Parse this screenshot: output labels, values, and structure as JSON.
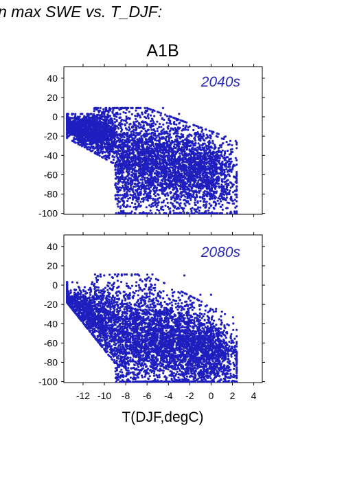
{
  "header": {
    "title": "in max SWE vs. T_DJF:"
  },
  "colors": {
    "points": "#1f1fbf",
    "period_label": "#2a2ab8",
    "axis": "#000000"
  },
  "chart_data": [
    {
      "type": "scatter",
      "title": "A1B",
      "annotation": "2040s",
      "xlabel": "",
      "ylabel": "",
      "xlim": [
        -13.8,
        4.8
      ],
      "ylim": [
        -101,
        52
      ],
      "x_ticks": [
        -12,
        -10,
        -8,
        -6,
        -4,
        -2,
        0,
        2,
        4
      ],
      "y_ticks": [
        -100,
        -80,
        -60,
        -40,
        -20,
        0,
        20,
        40
      ],
      "y_tick_labels": [
        "-100",
        "-80",
        "-60",
        "-40",
        "-20",
        "0",
        "20",
        "40"
      ],
      "grid": false,
      "point_color": "#1f1fbf",
      "cloud": {
        "n_points": 5500,
        "x_range": [
          -13.5,
          2.4
        ],
        "y_max": 9,
        "y_min": -100,
        "center_x": -5.2,
        "center_y": -45
      },
      "samples": [
        {
          "x": -13.4,
          "y": 0
        },
        {
          "x": -12.5,
          "y": -2
        },
        {
          "x": -11,
          "y": -5
        },
        {
          "x": -10,
          "y": 3
        },
        {
          "x": -8,
          "y": 4
        },
        {
          "x": -6,
          "y": 6
        },
        {
          "x": -4.5,
          "y": 9
        },
        {
          "x": -3,
          "y": 3
        },
        {
          "x": -2,
          "y": -10
        },
        {
          "x": 0.5,
          "y": -20
        },
        {
          "x": 1.8,
          "y": -25
        },
        {
          "x": 2.3,
          "y": -25
        },
        {
          "x": -8,
          "y": -30
        },
        {
          "x": -6,
          "y": -45
        },
        {
          "x": -4,
          "y": -60
        },
        {
          "x": -2,
          "y": -80
        },
        {
          "x": 1.5,
          "y": -100
        },
        {
          "x": 2.2,
          "y": -98
        }
      ]
    },
    {
      "type": "scatter",
      "title": "",
      "annotation": "2080s",
      "xlabel": "T(DJF,degC)",
      "ylabel": "",
      "xlim": [
        -13.8,
        4.8
      ],
      "ylim": [
        -101,
        52
      ],
      "x_ticks": [
        -12,
        -10,
        -8,
        -6,
        -4,
        -2,
        0,
        2,
        4
      ],
      "x_tick_labels": [
        "-12",
        "-10",
        "-8",
        "-6",
        "-4",
        "-2",
        "0",
        "2",
        "4"
      ],
      "y_ticks": [
        -100,
        -80,
        -60,
        -40,
        -20,
        0,
        20,
        40
      ],
      "y_tick_labels": [
        "-100",
        "-80",
        "-60",
        "-40",
        "-20",
        "0",
        "20",
        "40"
      ],
      "grid": false,
      "point_color": "#1f1fbf",
      "cloud": {
        "n_points": 5500,
        "x_range": [
          -13.5,
          2.4
        ],
        "y_max": 11,
        "y_min": -100,
        "center_x": -4.5,
        "center_y": -65
      },
      "samples": [
        {
          "x": -13.5,
          "y": -3
        },
        {
          "x": -13,
          "y": 3
        },
        {
          "x": -11,
          "y": 0
        },
        {
          "x": -9.5,
          "y": 2
        },
        {
          "x": -7,
          "y": 3
        },
        {
          "x": -5.5,
          "y": 11
        },
        {
          "x": -2.5,
          "y": 10
        },
        {
          "x": -1,
          "y": -10
        },
        {
          "x": 0,
          "y": -10
        },
        {
          "x": 0.5,
          "y": -45
        },
        {
          "x": 1.2,
          "y": -60
        },
        {
          "x": -8,
          "y": -60
        },
        {
          "x": -6,
          "y": -70
        },
        {
          "x": -4,
          "y": -80
        },
        {
          "x": -2,
          "y": -95
        },
        {
          "x": 1.5,
          "y": -100
        },
        {
          "x": 2.3,
          "y": -100
        }
      ]
    }
  ]
}
